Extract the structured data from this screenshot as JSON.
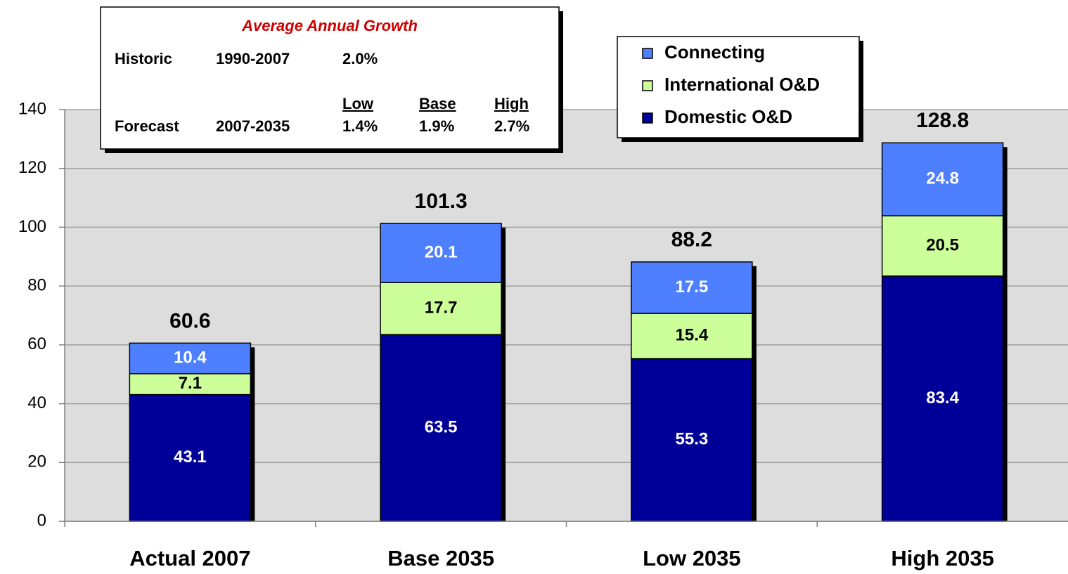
{
  "chart_data": {
    "type": "stacked_bar",
    "categories": [
      "Actual 2007",
      "Base 2035",
      "Low 2035",
      "High 2035"
    ],
    "series": [
      {
        "name": "Domestic O&D",
        "color": "#000099",
        "label_color": "#ffffff",
        "values": [
          43.1,
          63.5,
          55.3,
          83.4
        ]
      },
      {
        "name": "International O&D",
        "color": "#ccff99",
        "label_color": "#000000",
        "values": [
          7.1,
          17.7,
          15.4,
          20.5
        ]
      },
      {
        "name": "Connecting",
        "color": "#4d7fff",
        "label_color": "#ffffff",
        "values": [
          10.4,
          20.1,
          17.5,
          24.8
        ]
      }
    ],
    "totals": [
      60.6,
      101.3,
      88.2,
      128.8
    ],
    "ylim": [
      0,
      140
    ],
    "yticks": [
      0,
      20,
      40,
      60,
      80,
      100,
      120,
      140
    ],
    "grid": true,
    "legend": "upper right",
    "growth_box": {
      "title": "Average Annual Growth",
      "historic": [
        "Historic",
        "1990-2007",
        "2.0%"
      ],
      "headers": [
        "Low",
        "Base",
        "High"
      ],
      "forecast": [
        "Forecast",
        "2007-2035",
        "1.4%",
        "1.9%",
        "2.7%"
      ]
    }
  }
}
